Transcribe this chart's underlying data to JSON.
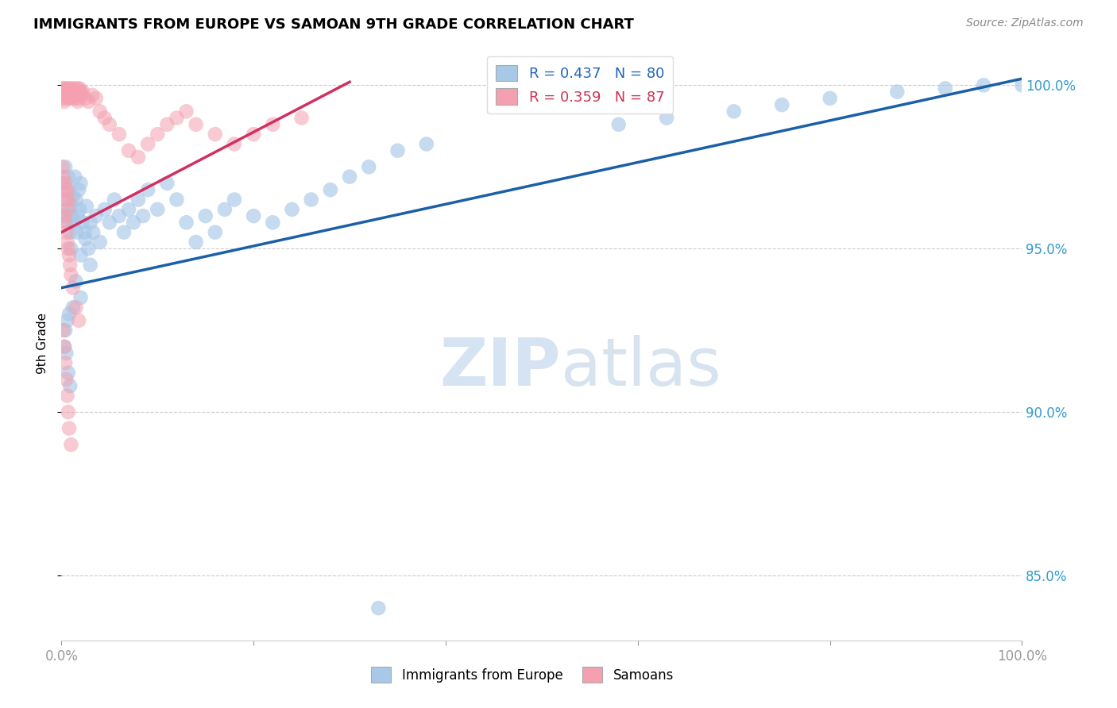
{
  "title": "IMMIGRANTS FROM EUROPE VS SAMOAN 9TH GRADE CORRELATION CHART",
  "source": "Source: ZipAtlas.com",
  "ylabel": "9th Grade",
  "ytick_labels": [
    "85.0%",
    "90.0%",
    "95.0%",
    "100.0%"
  ],
  "ytick_values": [
    0.85,
    0.9,
    0.95,
    1.0
  ],
  "legend_blue": "R = 0.437   N = 80",
  "legend_pink": "R = 0.359   N = 87",
  "legend_label_blue": "Immigrants from Europe",
  "legend_label_pink": "Samoans",
  "blue_color": "#a8c8e8",
  "pink_color": "#f4a0b0",
  "trendline_blue": "#1a5fa8",
  "trendline_pink": "#d03060",
  "watermark_zip": "ZIP",
  "watermark_atlas": "atlas",
  "blue_scatter_x": [
    0.001,
    0.002,
    0.003,
    0.004,
    0.005,
    0.006,
    0.007,
    0.008,
    0.009,
    0.01,
    0.011,
    0.012,
    0.013,
    0.014,
    0.015,
    0.016,
    0.017,
    0.018,
    0.019,
    0.02,
    0.022,
    0.024,
    0.026,
    0.028,
    0.03,
    0.033,
    0.036,
    0.04,
    0.045,
    0.05,
    0.055,
    0.06,
    0.065,
    0.07,
    0.075,
    0.08,
    0.085,
    0.09,
    0.1,
    0.11,
    0.12,
    0.13,
    0.14,
    0.15,
    0.16,
    0.17,
    0.18,
    0.2,
    0.22,
    0.24,
    0.26,
    0.28,
    0.3,
    0.32,
    0.35,
    0.38,
    0.02,
    0.025,
    0.03,
    0.01,
    0.015,
    0.02,
    0.012,
    0.008,
    0.006,
    0.004,
    0.003,
    0.005,
    0.007,
    0.009,
    0.58,
    0.63,
    0.7,
    0.75,
    0.8,
    0.87,
    0.92,
    0.96,
    1.0,
    0.33
  ],
  "blue_scatter_y": [
    0.97,
    0.965,
    0.96,
    0.975,
    0.962,
    0.958,
    0.972,
    0.968,
    0.955,
    0.963,
    0.96,
    0.966,
    0.958,
    0.972,
    0.965,
    0.955,
    0.96,
    0.968,
    0.962,
    0.97,
    0.958,
    0.955,
    0.963,
    0.95,
    0.958,
    0.955,
    0.96,
    0.952,
    0.962,
    0.958,
    0.965,
    0.96,
    0.955,
    0.962,
    0.958,
    0.965,
    0.96,
    0.968,
    0.962,
    0.97,
    0.965,
    0.958,
    0.952,
    0.96,
    0.955,
    0.962,
    0.965,
    0.96,
    0.958,
    0.962,
    0.965,
    0.968,
    0.972,
    0.975,
    0.98,
    0.982,
    0.948,
    0.953,
    0.945,
    0.95,
    0.94,
    0.935,
    0.932,
    0.93,
    0.928,
    0.925,
    0.92,
    0.918,
    0.912,
    0.908,
    0.988,
    0.99,
    0.992,
    0.994,
    0.996,
    0.998,
    0.999,
    1.0,
    1.0,
    0.84
  ],
  "pink_scatter_x": [
    0.001,
    0.002,
    0.003,
    0.004,
    0.005,
    0.006,
    0.007,
    0.008,
    0.009,
    0.01,
    0.011,
    0.012,
    0.013,
    0.014,
    0.015,
    0.016,
    0.017,
    0.018,
    0.019,
    0.02,
    0.002,
    0.003,
    0.004,
    0.005,
    0.006,
    0.007,
    0.008,
    0.009,
    0.01,
    0.011,
    0.012,
    0.013,
    0.014,
    0.015,
    0.016,
    0.017,
    0.018,
    0.02,
    0.022,
    0.025,
    0.028,
    0.032,
    0.036,
    0.04,
    0.045,
    0.05,
    0.06,
    0.07,
    0.08,
    0.09,
    0.1,
    0.11,
    0.12,
    0.13,
    0.14,
    0.16,
    0.18,
    0.2,
    0.22,
    0.25,
    0.001,
    0.002,
    0.003,
    0.004,
    0.005,
    0.006,
    0.007,
    0.008,
    0.003,
    0.004,
    0.005,
    0.006,
    0.007,
    0.008,
    0.009,
    0.01,
    0.012,
    0.015,
    0.018,
    0.002,
    0.003,
    0.004,
    0.005,
    0.006,
    0.007,
    0.008,
    0.01
  ],
  "pink_scatter_y": [
    0.999,
    0.999,
    0.998,
    0.999,
    0.998,
    0.999,
    0.997,
    0.998,
    0.999,
    0.998,
    0.999,
    0.998,
    0.997,
    0.999,
    0.998,
    0.997,
    0.999,
    0.998,
    0.999,
    0.998,
    0.996,
    0.995,
    0.997,
    0.996,
    0.998,
    0.997,
    0.996,
    0.998,
    0.997,
    0.996,
    0.998,
    0.997,
    0.996,
    0.998,
    0.997,
    0.995,
    0.996,
    0.997,
    0.998,
    0.996,
    0.995,
    0.997,
    0.996,
    0.992,
    0.99,
    0.988,
    0.985,
    0.98,
    0.978,
    0.982,
    0.985,
    0.988,
    0.99,
    0.992,
    0.988,
    0.985,
    0.982,
    0.985,
    0.988,
    0.99,
    0.975,
    0.972,
    0.968,
    0.97,
    0.965,
    0.968,
    0.962,
    0.965,
    0.96,
    0.958,
    0.955,
    0.952,
    0.95,
    0.948,
    0.945,
    0.942,
    0.938,
    0.932,
    0.928,
    0.925,
    0.92,
    0.915,
    0.91,
    0.905,
    0.9,
    0.895,
    0.89
  ]
}
